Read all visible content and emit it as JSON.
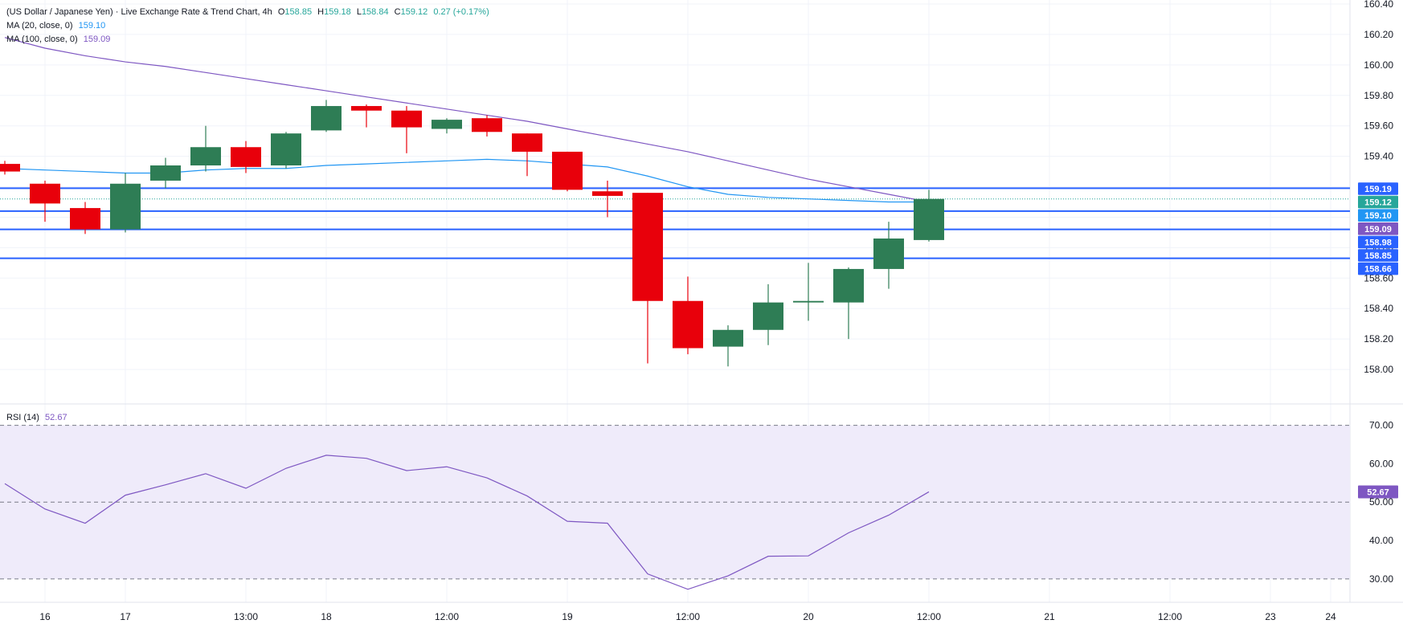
{
  "chart_data": {
    "type": "candlestick",
    "title": "(US Dollar / Japanese Yen) · Live Exchange Rate & Trend Chart, 4h",
    "ohlc_readout": {
      "o_label": "O",
      "o": "158.85",
      "h_label": "H",
      "h": "159.18",
      "l_label": "L",
      "l": "158.84",
      "c_label": "C",
      "c": "159.12",
      "change": "0.27 (+0.17%)"
    },
    "indicators": [
      {
        "label": "MA (20, close, 0)",
        "value": "159.10",
        "color": "#2196f3"
      },
      {
        "label": "MA (100, close, 0)",
        "value": "159.09",
        "color": "#7e57c2"
      }
    ],
    "price_axis": {
      "min": 157.8,
      "max": 160.4,
      "ticks": [
        "158.00",
        "158.20",
        "158.40",
        "158.60",
        "158.80",
        "159.00",
        "159.20",
        "159.40",
        "159.60",
        "159.80",
        "160.00",
        "160.20",
        "160.40"
      ]
    },
    "time_axis": {
      "labels": [
        {
          "text": "16",
          "slot": 1
        },
        {
          "text": "17",
          "slot": 3
        },
        {
          "text": "13:00",
          "slot": 6
        },
        {
          "text": "18",
          "slot": 8
        },
        {
          "text": "12:00",
          "slot": 11
        },
        {
          "text": "19",
          "slot": 14
        },
        {
          "text": "12:00",
          "slot": 17
        },
        {
          "text": "20",
          "slot": 20
        },
        {
          "text": "12:00",
          "slot": 23
        },
        {
          "text": "21",
          "slot": 26
        },
        {
          "text": "12:00",
          "slot": 29
        },
        {
          "text": "23",
          "slot": 31.5
        },
        {
          "text": "24",
          "slot": 33
        }
      ]
    },
    "candles": [
      {
        "o": 159.35,
        "h": 159.37,
        "l": 159.28,
        "c": 159.3
      },
      {
        "o": 159.22,
        "h": 159.24,
        "l": 158.97,
        "c": 159.09
      },
      {
        "o": 159.06,
        "h": 159.1,
        "l": 158.89,
        "c": 158.92
      },
      {
        "o": 158.92,
        "h": 159.29,
        "l": 158.9,
        "c": 159.22
      },
      {
        "o": 159.24,
        "h": 159.39,
        "l": 159.19,
        "c": 159.34
      },
      {
        "o": 159.34,
        "h": 159.6,
        "l": 159.3,
        "c": 159.46
      },
      {
        "o": 159.46,
        "h": 159.5,
        "l": 159.29,
        "c": 159.33
      },
      {
        "o": 159.34,
        "h": 159.56,
        "l": 159.32,
        "c": 159.55
      },
      {
        "o": 159.57,
        "h": 159.77,
        "l": 159.56,
        "c": 159.73
      },
      {
        "o": 159.73,
        "h": 159.74,
        "l": 159.59,
        "c": 159.7
      },
      {
        "o": 159.7,
        "h": 159.73,
        "l": 159.42,
        "c": 159.59
      },
      {
        "o": 159.58,
        "h": 159.65,
        "l": 159.55,
        "c": 159.64
      },
      {
        "o": 159.65,
        "h": 159.67,
        "l": 159.53,
        "c": 159.56
      },
      {
        "o": 159.55,
        "h": 159.55,
        "l": 159.27,
        "c": 159.43
      },
      {
        "o": 159.43,
        "h": 159.43,
        "l": 159.17,
        "c": 159.18
      },
      {
        "o": 159.17,
        "h": 159.24,
        "l": 159.0,
        "c": 159.14
      },
      {
        "o": 159.16,
        "h": 159.16,
        "l": 158.04,
        "c": 158.45
      },
      {
        "o": 158.45,
        "h": 158.61,
        "l": 158.1,
        "c": 158.14
      },
      {
        "o": 158.15,
        "h": 158.29,
        "l": 158.02,
        "c": 158.26
      },
      {
        "o": 158.26,
        "h": 158.56,
        "l": 158.16,
        "c": 158.44
      },
      {
        "o": 158.44,
        "h": 158.7,
        "l": 158.32,
        "c": 158.45
      },
      {
        "o": 158.44,
        "h": 158.67,
        "l": 158.2,
        "c": 158.66
      },
      {
        "o": 158.66,
        "h": 158.97,
        "l": 158.53,
        "c": 158.86
      },
      {
        "o": 158.85,
        "h": 159.18,
        "l": 158.84,
        "c": 159.12
      }
    ],
    "ma20": [
      159.32,
      159.31,
      159.3,
      159.29,
      159.29,
      159.31,
      159.32,
      159.32,
      159.34,
      159.35,
      159.36,
      159.37,
      159.38,
      159.37,
      159.35,
      159.33,
      159.27,
      159.2,
      159.15,
      159.13,
      159.12,
      159.11,
      159.1,
      159.1
    ],
    "ma100": [
      160.18,
      160.11,
      160.06,
      160.02,
      159.99,
      159.95,
      159.91,
      159.87,
      159.83,
      159.79,
      159.75,
      159.71,
      159.67,
      159.63,
      159.58,
      159.53,
      159.48,
      159.43,
      159.37,
      159.31,
      159.25,
      159.2,
      159.15,
      159.1
    ],
    "horizontal_lines": [
      159.19,
      159.04,
      158.92,
      158.73
    ],
    "last_close_line": 159.12,
    "price_tags": [
      {
        "text": "159.19",
        "color": "#2962ff"
      },
      {
        "text": "159.12",
        "color": "#26a69a"
      },
      {
        "text": "159.10",
        "color": "#2196f3"
      },
      {
        "text": "159.09",
        "color": "#7e57c2"
      },
      {
        "text": "158.98",
        "color": "#2962ff"
      },
      {
        "text": "158.85",
        "color": "#2962ff"
      },
      {
        "text": "158.66",
        "color": "#2962ff"
      }
    ],
    "rsi": {
      "label": "RSI (14)",
      "value": "52.67",
      "ticks": [
        "30.00",
        "40.00",
        "50.00",
        "60.00",
        "70.00"
      ],
      "min": 26,
      "max": 72,
      "upper": 70,
      "middle": 50,
      "lower": 30,
      "values": [
        54.8,
        48.2,
        44.5,
        51.8,
        54.5,
        57.4,
        53.6,
        58.8,
        62.2,
        61.4,
        58.2,
        59.2,
        56.3,
        51.6,
        45.0,
        44.5,
        31.3,
        27.3,
        30.8,
        35.9,
        36.0,
        42.0,
        46.6,
        52.67
      ]
    },
    "colors": {
      "up": "#2e7d55",
      "down": "#e8000b",
      "ma20": "#2196f3",
      "ma100": "#7e57c2",
      "level": "#2962ff",
      "rsi": "#7e57c2",
      "rsi_band": "#efebfa"
    }
  }
}
